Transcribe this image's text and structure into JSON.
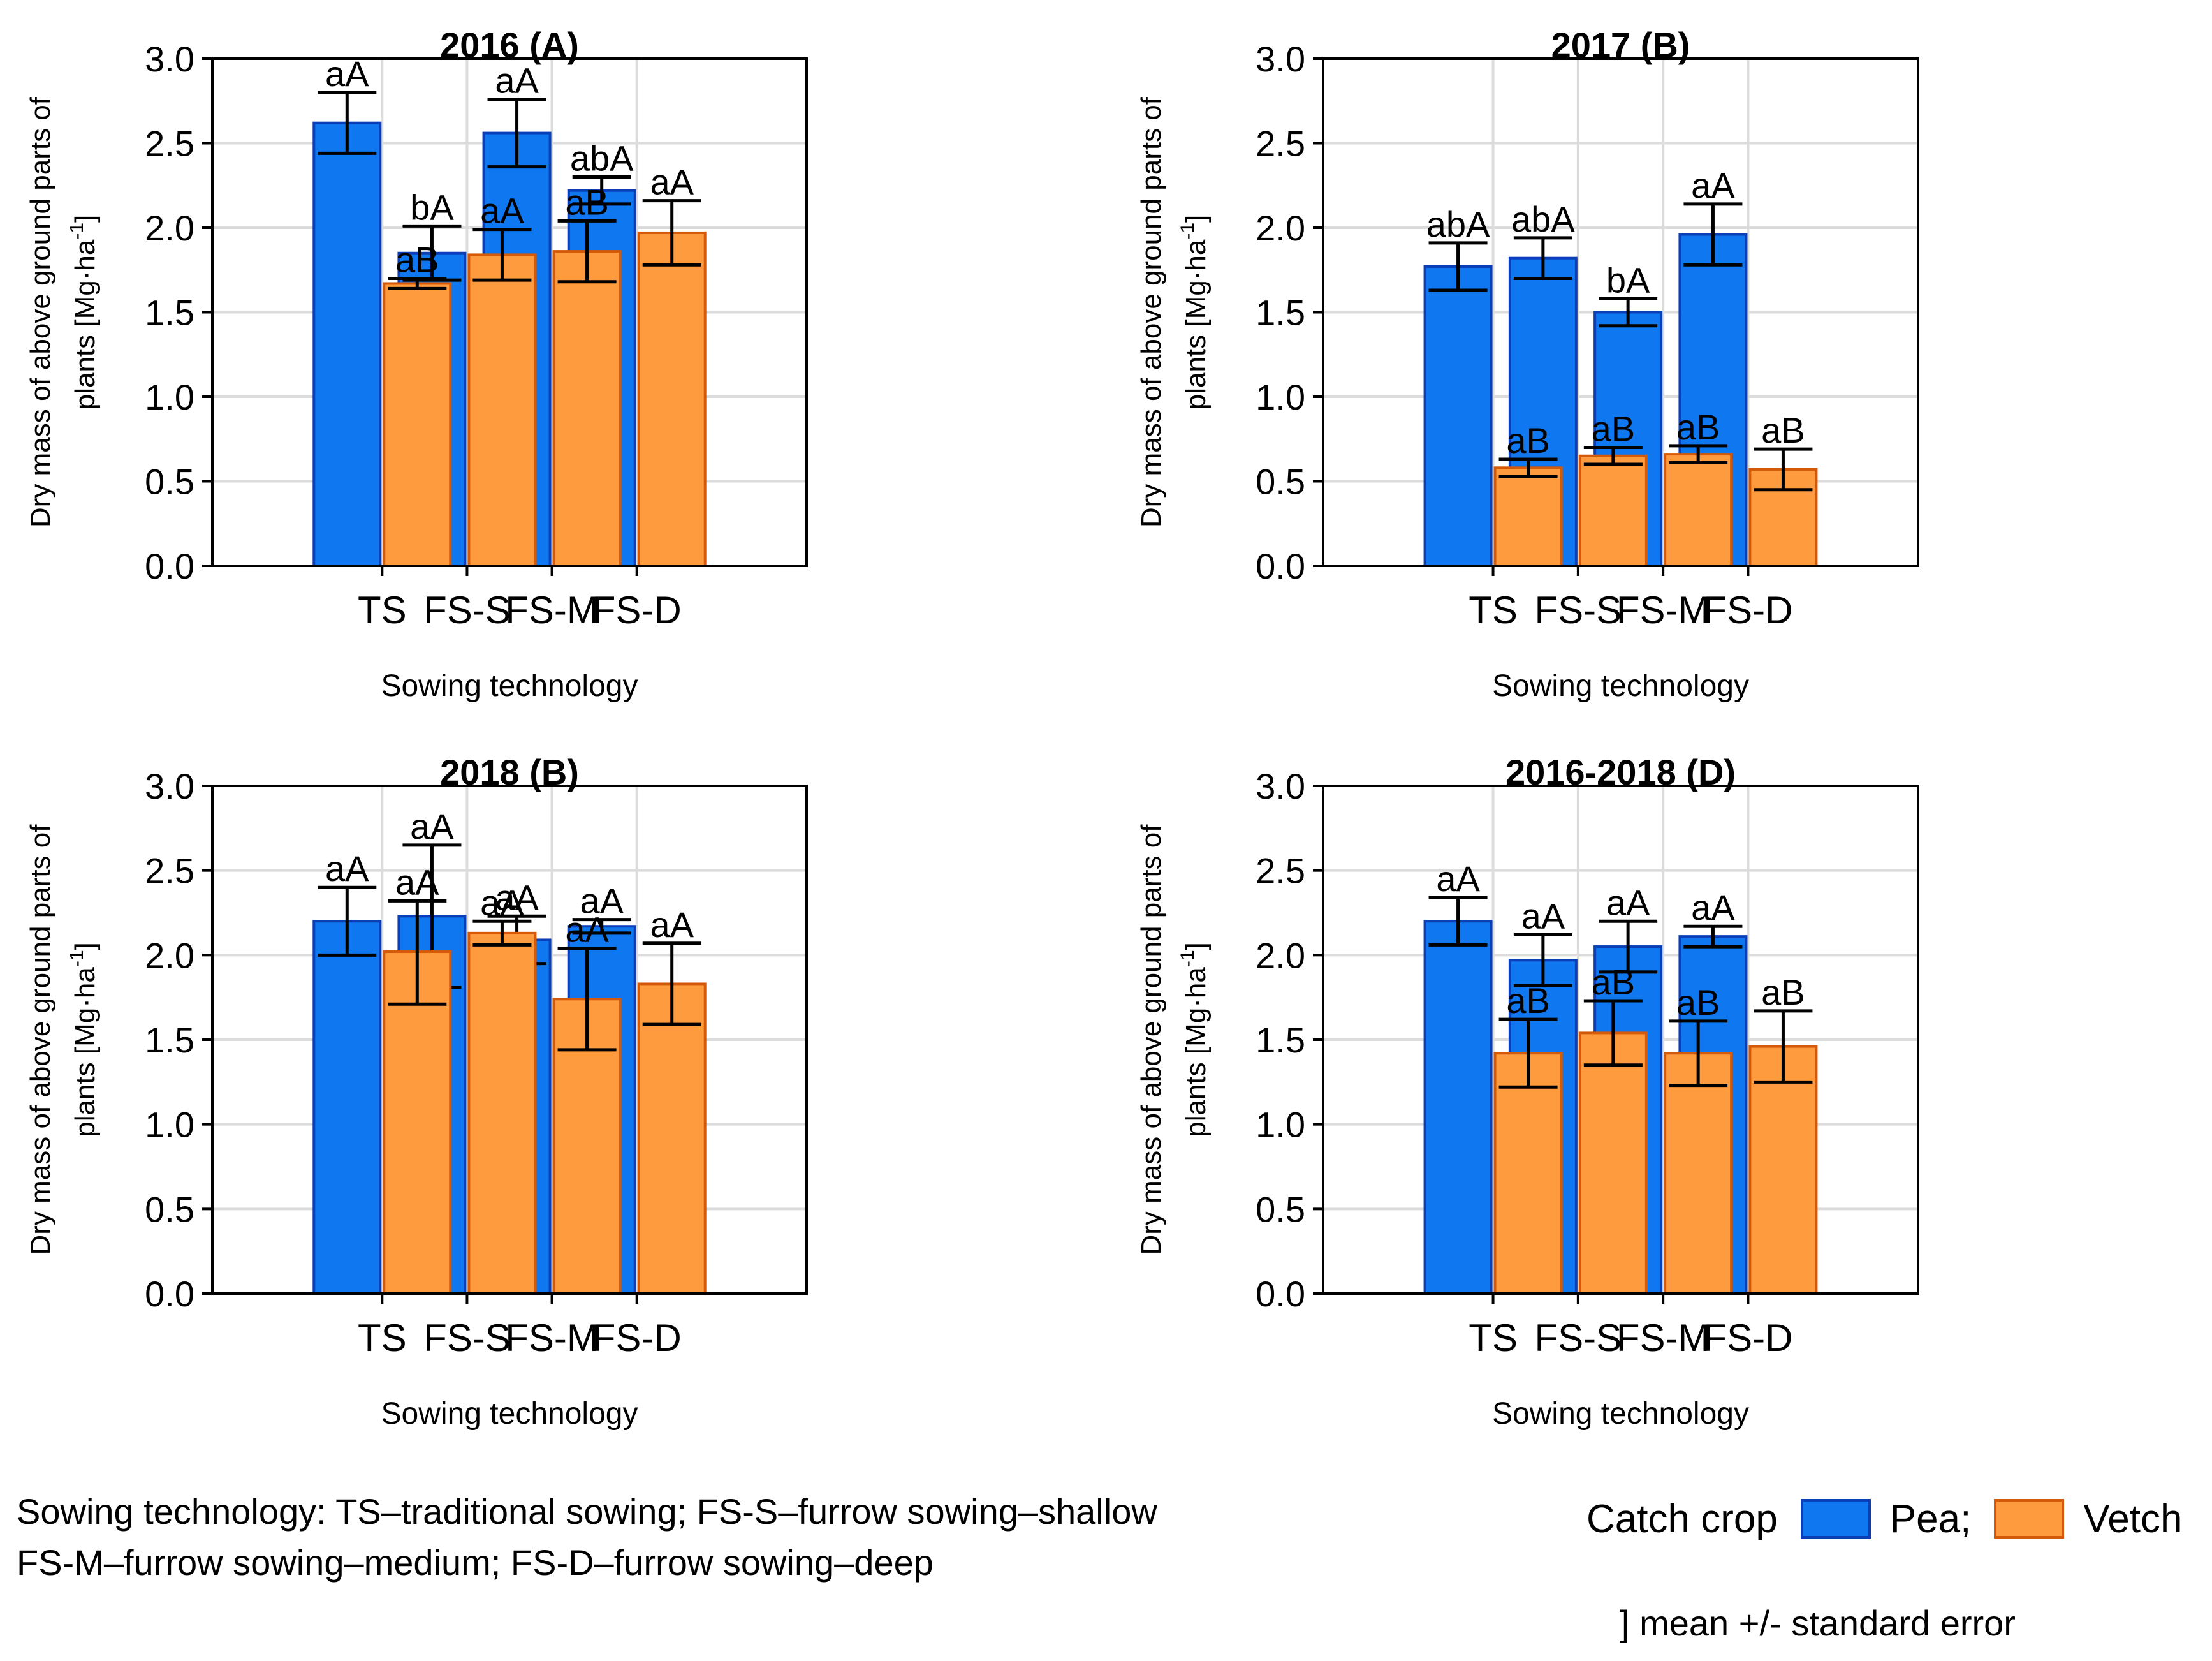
{
  "chart_data": [
    {
      "type": "bar",
      "title": "2016 (A)",
      "xlabel": "Sowing technology",
      "ylabel_lines": [
        "Dry mass of above ground parts of",
        "plants [Mg·ha"
      ],
      "ylabel_sup": "-1",
      "ylabel_close": "]",
      "ylim": [
        0,
        3
      ],
      "yticks": [
        "0.0",
        "0.5",
        "1.0",
        "1.5",
        "2.0",
        "2.5",
        "3.0"
      ],
      "grid": true,
      "categories": [
        "TS",
        "FS-S",
        "FS-M",
        "FS-D"
      ],
      "series": [
        {
          "name": "Pea",
          "values": [
            2.62,
            1.85,
            2.56,
            2.22
          ],
          "err_low": [
            2.44,
            1.69,
            2.36,
            2.14
          ],
          "err_high": [
            2.8,
            2.01,
            2.76,
            2.3
          ],
          "labels": [
            "aA",
            "bA",
            "aA",
            "abA"
          ]
        },
        {
          "name": "Vetch",
          "values": [
            1.67,
            1.84,
            1.86,
            1.97
          ],
          "err_low": [
            1.64,
            1.69,
            1.68,
            1.78
          ],
          "err_high": [
            1.7,
            1.99,
            2.04,
            2.16
          ],
          "labels": [
            "aB",
            "aA",
            "aB",
            "aA"
          ]
        }
      ]
    },
    {
      "type": "bar",
      "title": "2017 (B)",
      "xlabel": "Sowing technology",
      "ylabel_lines": [
        "Dry mass of above ground parts of",
        "plants [Mg·ha"
      ],
      "ylabel_sup": "-1",
      "ylabel_close": "]",
      "ylim": [
        0,
        3
      ],
      "yticks": [
        "0.0",
        "0.5",
        "1.0",
        "1.5",
        "2.0",
        "2.5",
        "3.0"
      ],
      "grid": true,
      "categories": [
        "TS",
        "FS-S",
        "FS-M",
        "FS-D"
      ],
      "series": [
        {
          "name": "Pea",
          "values": [
            1.77,
            1.82,
            1.5,
            1.96
          ],
          "err_low": [
            1.63,
            1.7,
            1.42,
            1.78
          ],
          "err_high": [
            1.91,
            1.94,
            1.58,
            2.14
          ],
          "labels": [
            "abA",
            "abA",
            "bA",
            "aA"
          ]
        },
        {
          "name": "Vetch",
          "values": [
            0.58,
            0.65,
            0.66,
            0.57
          ],
          "err_low": [
            0.53,
            0.6,
            0.61,
            0.45
          ],
          "err_high": [
            0.63,
            0.7,
            0.71,
            0.69
          ],
          "labels": [
            "aB",
            "aB",
            "aB",
            "aB"
          ]
        }
      ]
    },
    {
      "type": "bar",
      "title": "2018 (B)",
      "xlabel": "Sowing technology",
      "ylabel_lines": [
        "Dry mass of above ground parts of",
        "plants [Mg·ha"
      ],
      "ylabel_sup": "-1",
      "ylabel_close": "]",
      "ylim": [
        0,
        3
      ],
      "yticks": [
        "0.0",
        "0.5",
        "1.0",
        "1.5",
        "2.0",
        "2.5",
        "3.0"
      ],
      "grid": true,
      "categories": [
        "TS",
        "FS-S",
        "FS-M",
        "FS-D"
      ],
      "series": [
        {
          "name": "Pea",
          "values": [
            2.2,
            2.23,
            2.09,
            2.17
          ],
          "err_low": [
            2.0,
            1.81,
            1.95,
            2.13
          ],
          "err_high": [
            2.4,
            2.65,
            2.23,
            2.21
          ],
          "labels": [
            "aA",
            "aA",
            "aA",
            "aA"
          ]
        },
        {
          "name": "Vetch",
          "values": [
            2.02,
            2.13,
            1.74,
            1.83
          ],
          "err_low": [
            1.71,
            2.06,
            1.44,
            1.59
          ],
          "err_high": [
            2.32,
            2.2,
            2.04,
            2.07
          ],
          "labels": [
            "aA",
            "aA",
            "aA",
            "aA"
          ]
        }
      ]
    },
    {
      "type": "bar",
      "title": "2016-2018 (D)",
      "xlabel": "Sowing technology",
      "ylabel_lines": [
        "Dry mass of above ground parts of",
        "plants [Mg·ha"
      ],
      "ylabel_sup": "-1",
      "ylabel_close": "]",
      "ylim": [
        0,
        3
      ],
      "yticks": [
        "0.0",
        "0.5",
        "1.0",
        "1.5",
        "2.0",
        "2.5",
        "3.0"
      ],
      "grid": true,
      "categories": [
        "TS",
        "FS-S",
        "FS-M",
        "FS-D"
      ],
      "series": [
        {
          "name": "Pea",
          "values": [
            2.2,
            1.97,
            2.05,
            2.11
          ],
          "err_low": [
            2.06,
            1.82,
            1.9,
            2.05
          ],
          "err_high": [
            2.34,
            2.12,
            2.2,
            2.17
          ],
          "labels": [
            "aA",
            "aA",
            "aA",
            "aA"
          ]
        },
        {
          "name": "Vetch",
          "values": [
            1.42,
            1.54,
            1.42,
            1.46
          ],
          "err_low": [
            1.22,
            1.35,
            1.23,
            1.25
          ],
          "err_high": [
            1.62,
            1.73,
            1.61,
            1.67
          ],
          "labels": [
            "aB",
            "aB",
            "aB",
            "aB"
          ]
        }
      ]
    }
  ],
  "colors": {
    "pea_fill": "#0f78f0",
    "pea_edge": "#0a3fb8",
    "vetch_fill": "#ff9b3f",
    "vetch_edge": "#d45a0a",
    "grid": "#dcdcdc"
  },
  "footer": {
    "line1": "Sowing technology: TS–traditional sowing; FS-S–furrow sowing–shallow",
    "line2": "FS-M–furrow sowing–medium; FS-D–furrow sowing–deep"
  },
  "legend": {
    "title": "Catch crop",
    "pea_label": "Pea;",
    "vetch_label": "Vetch"
  },
  "error_note": "] mean +/- standard error"
}
